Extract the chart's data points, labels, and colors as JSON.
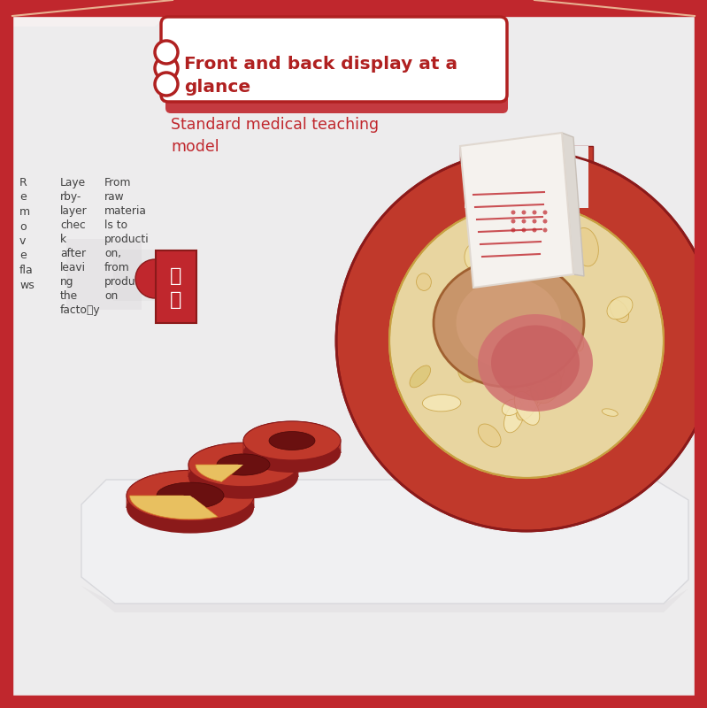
{
  "bg_color": "#edeced",
  "border_color": "#c0272d",
  "title_text": "Front and back display at a\nglance",
  "title_color": "#b02020",
  "title_bg": "#ffffff",
  "title_border": "#b02020",
  "subtitle_text": "Standard medical teaching\nmodel",
  "subtitle_color": "#c0272d",
  "col1_text": "R\ne\nm\no\nv\ne\nfla\nws",
  "col2_text": "Laye\nrby-\nlayer\nchec\nk\nafter\nleavi\nng\nthe\nfacto\ry",
  "col3_text": "From\nraw\nmateria\nls to\nproducti\non,\nfrom\nproducti\non",
  "badge_char1": "品",
  "badge_char2": "质",
  "badge_bg": "#c0272d",
  "artery_red": "#c0392b",
  "artery_dark": "#8b1a1a",
  "artery_orange": "#d4802a",
  "artery_yellow": "#e8c060",
  "artery_cream": "#e8d090",
  "lipid_cream": "#e8d5a0",
  "lumen_red": "#c03030",
  "base_white": "#f0f0f2",
  "base_edge": "#d8d8dc",
  "card_bg": "#f5f2ee",
  "shadow_gray": "#c8c4c8"
}
